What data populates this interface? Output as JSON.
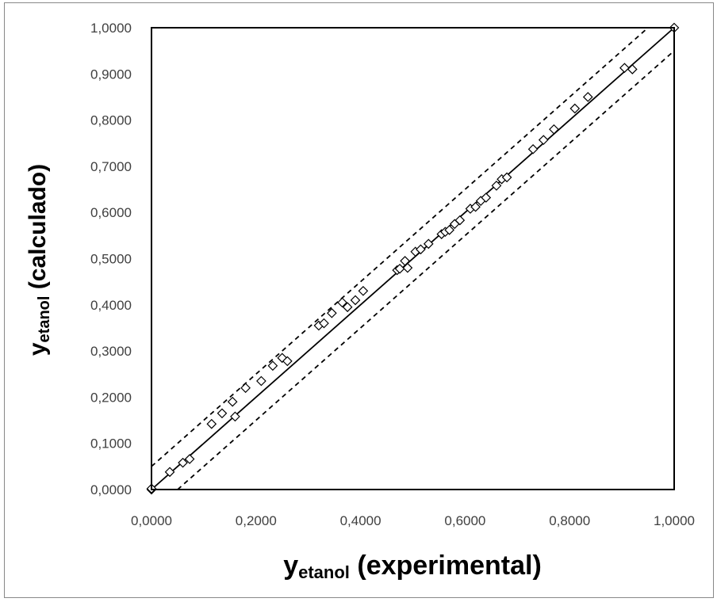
{
  "chart_data": {
    "type": "scatter",
    "title": "",
    "xlabel": {
      "main": "y",
      "sub": "etanol",
      "suffix": " (experimental)"
    },
    "ylabel": {
      "main": "y",
      "sub": "etanol",
      "suffix": " (calculado)"
    },
    "xlim": [
      0,
      1
    ],
    "ylim": [
      0,
      1
    ],
    "x_ticks": [
      "0,0000",
      "0,2000",
      "0,4000",
      "0,6000",
      "0,8000",
      "1,0000"
    ],
    "y_ticks": [
      "0,0000",
      "0,1000",
      "0,2000",
      "0,3000",
      "0,4000",
      "0,5000",
      "0,6000",
      "0,7000",
      "0,8000",
      "0,9000",
      "1,0000"
    ],
    "grid": false,
    "legend": "none",
    "marker": "diamond-open",
    "reference_lines": [
      {
        "kind": "solid",
        "points": [
          [
            0,
            0
          ],
          [
            1,
            1
          ]
        ]
      },
      {
        "kind": "dashed",
        "points": [
          [
            0,
            0.05
          ],
          [
            0.95,
            1
          ]
        ]
      },
      {
        "kind": "dashed",
        "points": [
          [
            0.05,
            0
          ],
          [
            1,
            0.95
          ]
        ]
      }
    ],
    "points": [
      [
        0.0,
        0.0
      ],
      [
        0.0,
        0.002
      ],
      [
        0.035,
        0.038
      ],
      [
        0.06,
        0.058
      ],
      [
        0.073,
        0.066
      ],
      [
        0.115,
        0.142
      ],
      [
        0.135,
        0.165
      ],
      [
        0.155,
        0.19
      ],
      [
        0.16,
        0.158
      ],
      [
        0.18,
        0.22
      ],
      [
        0.21,
        0.235
      ],
      [
        0.232,
        0.268
      ],
      [
        0.25,
        0.285
      ],
      [
        0.26,
        0.278
      ],
      [
        0.32,
        0.355
      ],
      [
        0.33,
        0.36
      ],
      [
        0.345,
        0.382
      ],
      [
        0.365,
        0.405
      ],
      [
        0.375,
        0.395
      ],
      [
        0.39,
        0.41
      ],
      [
        0.405,
        0.43
      ],
      [
        0.47,
        0.475
      ],
      [
        0.475,
        0.478
      ],
      [
        0.485,
        0.495
      ],
      [
        0.49,
        0.48
      ],
      [
        0.505,
        0.515
      ],
      [
        0.515,
        0.52
      ],
      [
        0.53,
        0.532
      ],
      [
        0.555,
        0.553
      ],
      [
        0.562,
        0.558
      ],
      [
        0.57,
        0.562
      ],
      [
        0.58,
        0.575
      ],
      [
        0.59,
        0.583
      ],
      [
        0.61,
        0.608
      ],
      [
        0.62,
        0.612
      ],
      [
        0.63,
        0.625
      ],
      [
        0.64,
        0.632
      ],
      [
        0.66,
        0.658
      ],
      [
        0.67,
        0.672
      ],
      [
        0.68,
        0.676
      ],
      [
        0.73,
        0.737
      ],
      [
        0.75,
        0.757
      ],
      [
        0.77,
        0.78
      ],
      [
        0.81,
        0.825
      ],
      [
        0.835,
        0.85
      ],
      [
        0.905,
        0.913
      ],
      [
        0.92,
        0.91
      ],
      [
        1.0,
        1.0
      ]
    ]
  }
}
